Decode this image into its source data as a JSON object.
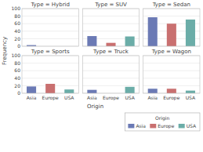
{
  "chart_data": [
    {
      "type": "bar",
      "title": "Type = Hybrid",
      "categories": [
        "Asia",
        "Europe",
        "USA"
      ],
      "values": [
        3,
        0,
        0
      ],
      "colors": [
        "#6b7ab5",
        "#c97070",
        "#6bada8"
      ],
      "ylim": [
        0,
        100
      ],
      "yticks": [
        0,
        20,
        40,
        60,
        80,
        100
      ],
      "grid": true,
      "tick_labels": "y",
      "xlabel": "Origin",
      "ylabel": "Frequency",
      "legend": "lower right",
      "legend_title": "Origin"
    },
    {
      "type": "bar",
      "title": "Type = SUV",
      "categories": [
        "Asia",
        "Europe",
        "USA"
      ],
      "values": [
        27,
        9,
        26
      ],
      "colors": [
        "#6b7ab5",
        "#c97070",
        "#6bada8"
      ],
      "ylim": [
        0,
        100
      ],
      "yticks": [
        0,
        20,
        40,
        60,
        80,
        100
      ],
      "grid": true,
      "tick_labels": false
    },
    {
      "type": "bar",
      "title": "Type = Sedan",
      "categories": [
        "Asia",
        "Europe",
        "USA"
      ],
      "values": [
        77,
        60,
        71
      ],
      "colors": [
        "#6b7ab5",
        "#c97070",
        "#6bada8"
      ],
      "ylim": [
        0,
        100
      ],
      "yticks": [
        0,
        20,
        40,
        60,
        80,
        100
      ],
      "grid": true,
      "tick_labels": false
    },
    {
      "type": "bar",
      "title": "Type = Sports",
      "categories": [
        "Asia",
        "Europe",
        "USA"
      ],
      "values": [
        18,
        25,
        10
      ],
      "colors": [
        "#6b7ab5",
        "#c97070",
        "#6bada8"
      ],
      "ylim": [
        0,
        100
      ],
      "yticks": [
        0,
        20,
        40,
        60,
        80,
        100
      ],
      "grid": true,
      "tick_labels": true
    },
    {
      "type": "bar",
      "title": "Type = Truck",
      "categories": [
        "Asia",
        "Europe",
        "USA"
      ],
      "values": [
        9,
        0,
        17
      ],
      "colors": [
        "#6b7ab5",
        "#c97070",
        "#6bada8"
      ],
      "ylim": [
        0,
        100
      ],
      "yticks": [
        0,
        20,
        40,
        60,
        80,
        100
      ],
      "grid": true,
      "tick_labels": "x"
    },
    {
      "type": "bar",
      "title": "Type = Wagon",
      "categories": [
        "Asia",
        "Europe",
        "USA"
      ],
      "values": [
        12,
        12,
        7
      ],
      "colors": [
        "#6b7ab5",
        "#c97070",
        "#6bada8"
      ],
      "ylim": [
        0,
        100
      ],
      "yticks": [
        0,
        20,
        40,
        60,
        80,
        100
      ],
      "grid": true,
      "tick_labels": "x"
    }
  ]
}
